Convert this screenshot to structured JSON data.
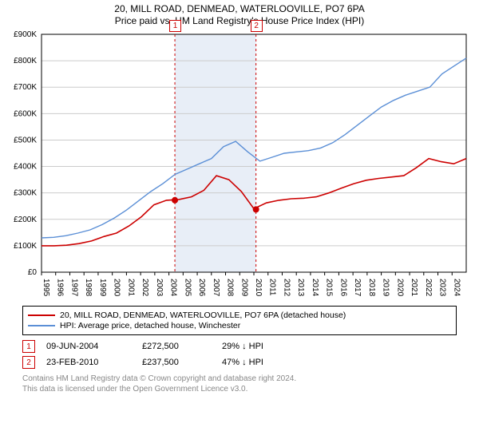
{
  "title_line1": "20, MILL ROAD, DENMEAD, WATERLOOVILLE, PO7 6PA",
  "title_line2": "Price paid vs. HM Land Registry's House Price Index (HPI)",
  "chart": {
    "type": "line",
    "background_color": "#ffffff",
    "grid_color": "#cccccc",
    "axis_color": "#000000",
    "tick_fontsize": 10,
    "x_years": [
      "1995",
      "1996",
      "1997",
      "1998",
      "1999",
      "2000",
      "2001",
      "2002",
      "2003",
      "2004",
      "2005",
      "2006",
      "2007",
      "2008",
      "2009",
      "2010",
      "2011",
      "2012",
      "2013",
      "2014",
      "2015",
      "2016",
      "2017",
      "2018",
      "2019",
      "2020",
      "2021",
      "2022",
      "2023",
      "2024"
    ],
    "y_ticks": [
      0,
      100,
      200,
      300,
      400,
      500,
      600,
      700,
      800,
      900
    ],
    "y_tick_labels": [
      "£0",
      "£100K",
      "£200K",
      "£300K",
      "£400K",
      "£500K",
      "£600K",
      "£700K",
      "£800K",
      "£900K"
    ],
    "ylim": [
      0,
      900
    ],
    "series": [
      {
        "name": "property",
        "color": "#cc0000",
        "width": 1.6,
        "data": [
          100,
          100,
          102,
          108,
          118,
          135,
          148,
          175,
          210,
          255,
          272,
          275,
          285,
          310,
          365,
          350,
          305,
          240,
          262,
          272,
          278,
          280,
          285,
          300,
          318,
          335,
          348,
          355,
          360,
          365,
          395,
          430,
          418,
          410,
          430
        ]
      },
      {
        "name": "hpi",
        "color": "#5b8fd6",
        "width": 1.4,
        "data": [
          130,
          132,
          138,
          148,
          160,
          180,
          205,
          235,
          270,
          305,
          335,
          370,
          390,
          410,
          430,
          475,
          495,
          455,
          420,
          435,
          450,
          455,
          460,
          470,
          490,
          520,
          555,
          590,
          625,
          650,
          670,
          685,
          700,
          750,
          780,
          810
        ]
      }
    ],
    "shade_band": {
      "fill": "#e8eef7",
      "x_start_year": 2004.42,
      "x_end_year": 2010.15
    },
    "markers": [
      {
        "n": "1",
        "color": "#cc0000",
        "x_year": 2004.42,
        "y_value": 272.5
      },
      {
        "n": "2",
        "color": "#cc0000",
        "x_year": 2010.15,
        "y_value": 237.5
      }
    ]
  },
  "legend": {
    "items": [
      {
        "color": "#cc0000",
        "label": "20, MILL ROAD, DENMEAD, WATERLOOVILLE, PO7 6PA (detached house)"
      },
      {
        "color": "#5b8fd6",
        "label": "HPI: Average price, detached house, Winchester"
      }
    ]
  },
  "transactions": [
    {
      "n": "1",
      "color": "#cc0000",
      "date": "09-JUN-2004",
      "price": "£272,500",
      "pct": "29% ↓ HPI"
    },
    {
      "n": "2",
      "color": "#cc0000",
      "date": "23-FEB-2010",
      "price": "£237,500",
      "pct": "47% ↓ HPI"
    }
  ],
  "footer_line1": "Contains HM Land Registry data © Crown copyright and database right 2024.",
  "footer_line2": "This data is licensed under the Open Government Licence v3.0."
}
